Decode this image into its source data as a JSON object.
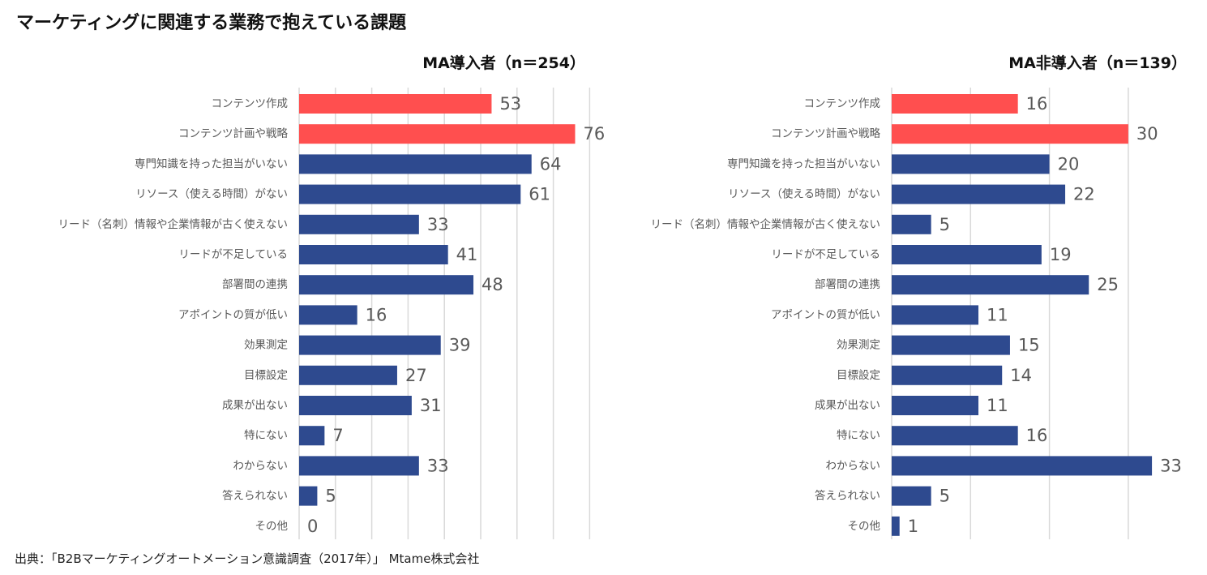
{
  "page": {
    "title": "マーケティングに関連する業務で抱えている課題",
    "source": "出典：「B2Bマーケティングオートメーション意識調査（2017年）」 Mtame株式会社"
  },
  "colors": {
    "highlight": "#FF4F4F",
    "normal": "#2E4A8F",
    "grid": "#D9D9D9",
    "label_text": "#595959",
    "value_text": "#595959"
  },
  "chart_data": [
    {
      "type": "bar",
      "orientation": "horizontal",
      "title": "MA導入者（n＝254）",
      "categories": [
        "コンテンツ作成",
        "コンテンツ計画や戦略",
        "専門知識を持った担当がいない",
        "リソース（使える時間）がない",
        "リード（名刺）情報や企業情報が古く使えない",
        "リードが不足している",
        "部署間の連携",
        "アポイントの質が低い",
        "効果測定",
        "目標設定",
        "成果が出ない",
        "特にない",
        "わからない",
        "答えられない",
        "その他"
      ],
      "values": [
        53,
        76,
        64,
        61,
        33,
        41,
        48,
        16,
        39,
        27,
        31,
        7,
        33,
        5,
        0
      ],
      "highlight": [
        true,
        true,
        false,
        false,
        false,
        false,
        false,
        false,
        false,
        false,
        false,
        false,
        false,
        false,
        false
      ],
      "xlim": [
        0,
        80
      ],
      "grid": true,
      "grid_step": 10
    },
    {
      "type": "bar",
      "orientation": "horizontal",
      "title": "MA非導入者（n＝139）",
      "categories": [
        "コンテンツ作成",
        "コンテンツ計画や戦略",
        "専門知識を持った担当がいない",
        "リソース（使える時間）がない",
        "リード（名刺）情報や企業情報が古く使えない",
        "リードが不足している",
        "部署間の連携",
        "アポイントの質が低い",
        "効果測定",
        "目標設定",
        "成果が出ない",
        "特にない",
        "わからない",
        "答えられない",
        "その他"
      ],
      "values": [
        16,
        30,
        20,
        22,
        5,
        19,
        25,
        11,
        15,
        14,
        11,
        16,
        33,
        5,
        1
      ],
      "highlight": [
        true,
        true,
        false,
        false,
        false,
        false,
        false,
        false,
        false,
        false,
        false,
        false,
        false,
        false,
        false
      ],
      "xlim": [
        0,
        35
      ],
      "grid": true,
      "grid_step": 10
    }
  ]
}
